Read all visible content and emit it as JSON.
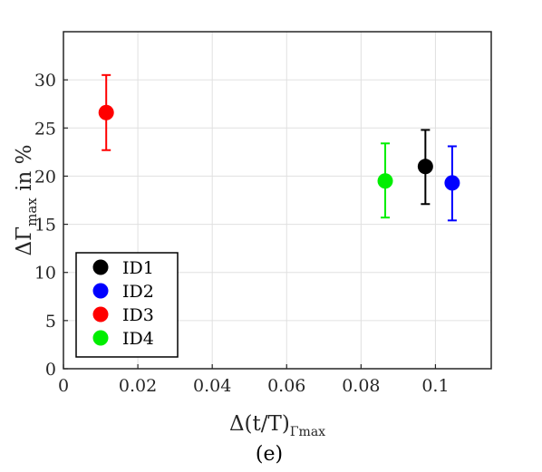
{
  "chart_data": {
    "type": "scatter",
    "title": "",
    "xlabel": {
      "main": "Δ(t/T)",
      "sub": "Γmax"
    },
    "ylabel": {
      "main": "ΔΓ",
      "sub": "max",
      "suffix": " in %"
    },
    "xlim": [
      0,
      0.115
    ],
    "ylim": [
      0,
      35
    ],
    "xticks": [
      0,
      0.02,
      0.04,
      0.06,
      0.08,
      0.1
    ],
    "xtick_labels": [
      "0",
      "0.02",
      "0.04",
      "0.06",
      "0.08",
      "0.1"
    ],
    "yticks": [
      0,
      5,
      10,
      15,
      20,
      25,
      30
    ],
    "ytick_labels": [
      "0",
      "5",
      "10",
      "15",
      "20",
      "25",
      "30"
    ],
    "grid": true,
    "legend_position": "bottom-left",
    "series": [
      {
        "name": "ID1",
        "color": "#000000",
        "x": [
          0.0973
        ],
        "y": [
          21.0
        ],
        "err_low": [
          17.1
        ],
        "err_high": [
          24.8
        ]
      },
      {
        "name": "ID2",
        "color": "#0000ff",
        "x": [
          0.1045
        ],
        "y": [
          19.3
        ],
        "err_low": [
          15.4
        ],
        "err_high": [
          23.1
        ]
      },
      {
        "name": "ID3",
        "color": "#ff0000",
        "x": [
          0.0115
        ],
        "y": [
          26.6
        ],
        "err_low": [
          22.7
        ],
        "err_high": [
          30.5
        ]
      },
      {
        "name": "ID4",
        "color": "#00ee00",
        "x": [
          0.0865
        ],
        "y": [
          19.5
        ],
        "err_low": [
          15.7
        ],
        "err_high": [
          23.4
        ]
      }
    ]
  },
  "caption": "(e)"
}
